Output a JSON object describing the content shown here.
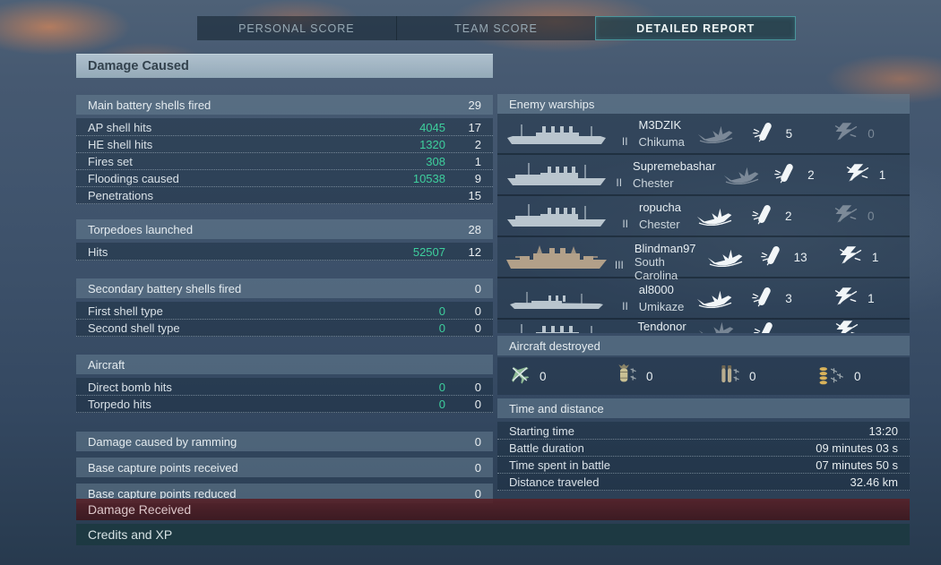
{
  "colors": {
    "value_green": "#3ecf9d",
    "section_header_bg": "#a9bdc9",
    "active_tab_border": "#4a969c",
    "damage_received_bar": "#4a2127",
    "credits_bar": "#1f3e44"
  },
  "tab_bar": {
    "tabs": [
      {
        "label": "PERSONAL SCORE",
        "active": false
      },
      {
        "label": "TEAM SCORE",
        "active": false
      },
      {
        "label": "DETAILED REPORT",
        "active": true
      }
    ]
  },
  "damage_caused": {
    "title": "Damage Caused",
    "groups": [
      {
        "label": "Main battery shells fired",
        "value": "29",
        "rows": [
          {
            "label": "AP shell hits",
            "damage": "4045",
            "count": "17"
          },
          {
            "label": "HE shell hits",
            "damage": "1320",
            "count": "2"
          },
          {
            "label": "Fires set",
            "damage": "308",
            "count": "1"
          },
          {
            "label": "Floodings caused",
            "damage": "10538",
            "count": "9"
          },
          {
            "label": "Penetrations",
            "damage": "",
            "count": "15"
          }
        ]
      },
      {
        "label": "Torpedoes launched",
        "value": "28",
        "rows": [
          {
            "label": "Hits",
            "damage": "52507",
            "count": "12"
          }
        ]
      },
      {
        "label": "Secondary battery shells fired",
        "value": "0",
        "rows": [
          {
            "label": "First shell type",
            "damage": "0",
            "count": "0"
          },
          {
            "label": "Second shell type",
            "damage": "0",
            "count": "0"
          }
        ]
      },
      {
        "label": "Aircraft",
        "value": "",
        "rows": [
          {
            "label": "Direct bomb hits",
            "damage": "0",
            "count": "0"
          },
          {
            "label": "Torpedo hits",
            "damage": "0",
            "count": "0"
          }
        ]
      },
      {
        "label": "Damage caused by ramming",
        "value": "0",
        "rows": []
      },
      {
        "label": "Base capture points received",
        "value": "0",
        "rows": []
      },
      {
        "label": "Base capture points reduced",
        "value": "0",
        "rows": []
      }
    ]
  },
  "enemy_warships": {
    "title": "Enemy warships",
    "ships": [
      {
        "player": "M3DZIK",
        "ship": "Chikuma",
        "tier": "II",
        "silhouette": "four-stack-cruiser",
        "hull_color": "#b9c5ce",
        "sunk": false,
        "hits": "5",
        "incapacitations": "0",
        "clipped": false
      },
      {
        "player": "Supremebashar",
        "ship": "Chester",
        "tier": "II",
        "silhouette": "cruiser",
        "hull_color": "#b9c5ce",
        "sunk": false,
        "hits": "2",
        "incapacitations": "1",
        "clipped": false
      },
      {
        "player": "ropucha",
        "ship": "Chester",
        "tier": "II",
        "silhouette": "cruiser",
        "hull_color": "#b9c5ce",
        "sunk": true,
        "hits": "2",
        "incapacitations": "0",
        "clipped": false
      },
      {
        "player": "Blindman97",
        "ship": "South Carolina",
        "tier": "III",
        "silhouette": "battleship",
        "hull_color": "#b2a089",
        "sunk": true,
        "hits": "13",
        "incapacitations": "1",
        "clipped": false
      },
      {
        "player": "al8000",
        "ship": "Umikaze",
        "tier": "II",
        "silhouette": "destroyer",
        "hull_color": "#b9c5ce",
        "sunk": true,
        "hits": "3",
        "incapacitations": "1",
        "clipped": false
      },
      {
        "player": "Tendonor",
        "ship": "",
        "tier": "",
        "silhouette": "four-stack-cruiser",
        "hull_color": "#b9c5ce",
        "sunk": false,
        "hits": "",
        "incapacitations": "",
        "clipped": true
      }
    ]
  },
  "aircraft_destroyed": {
    "title": "Aircraft destroyed",
    "counters": [
      {
        "key": "fighter",
        "icon": "fighter-destroyed-icon",
        "value": "0"
      },
      {
        "key": "bomb",
        "icon": "bomber-destroyed-icon",
        "value": "0"
      },
      {
        "key": "torpedo",
        "icon": "torpedo-bomber-destroyed-icon",
        "value": "0"
      },
      {
        "key": "shells",
        "icon": "aa-shells-destroyed-icon",
        "value": "0"
      }
    ]
  },
  "time_and_distance": {
    "title": "Time and distance",
    "rows": [
      {
        "label": "Starting time",
        "value": "13:20"
      },
      {
        "label": "Battle duration",
        "value": "09 minutes 03 s"
      },
      {
        "label": "Time spent in battle",
        "value": "07 minutes 50 s"
      },
      {
        "label": "Distance traveled",
        "value": "32.46 km"
      }
    ]
  },
  "footer_sections": [
    {
      "label": "Damage Received"
    },
    {
      "label": "Credits and XP"
    }
  ]
}
